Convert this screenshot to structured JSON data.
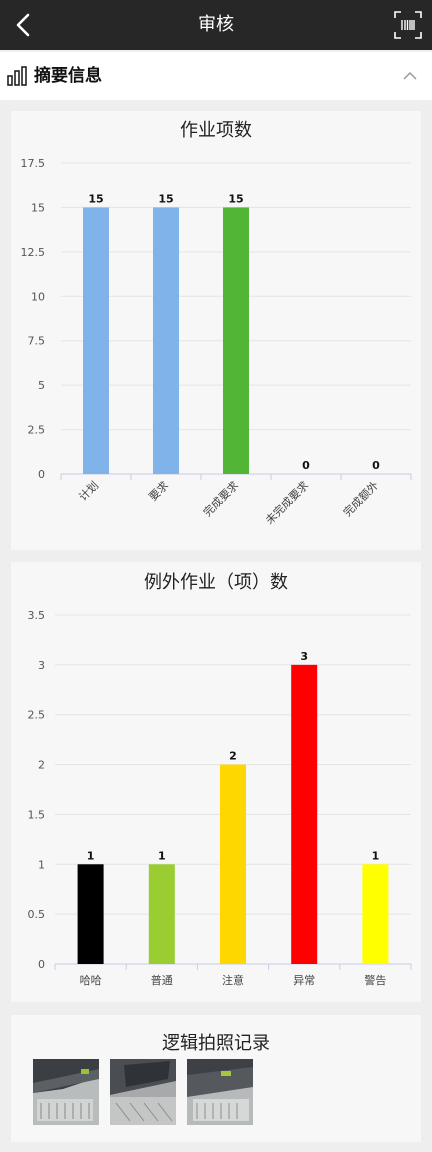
{
  "header": {
    "title": "审核",
    "back_icon": "chevron-left-icon",
    "scan_icon": "scan-barcode-icon"
  },
  "summary": {
    "title": "摘要信息",
    "icon": "bar-chart-icon",
    "collapse_icon": "chevron-up-icon"
  },
  "chart_data": [
    {
      "type": "bar",
      "title": "作业项数",
      "categories": [
        "计划",
        "要求",
        "完成要求",
        "未完成要求",
        "完成额外"
      ],
      "values": [
        15,
        15,
        15,
        0,
        0
      ],
      "colors": [
        "#7fb3ea",
        "#7fb3ea",
        "#52b535",
        "#7fb3ea",
        "#7fb3ea"
      ],
      "ylim": [
        0,
        17.5
      ],
      "yticks": [
        "0",
        "2.5",
        "5",
        "7.5",
        "10",
        "12.5",
        "15",
        "17.5"
      ],
      "grid": true
    },
    {
      "type": "bar",
      "title": "例外作业（项）数",
      "categories": [
        "哈哈",
        "普通",
        "注意",
        "异常",
        "警告"
      ],
      "values": [
        1,
        1,
        2,
        3,
        1
      ],
      "colors": [
        "#000000",
        "#9acd32",
        "#ffd700",
        "#ff0000",
        "#ffff00"
      ],
      "ylim": [
        0,
        3.5
      ],
      "yticks": [
        "0",
        "0.5",
        "1",
        "1.5",
        "2",
        "2.5",
        "3",
        "3.5"
      ],
      "grid": true
    }
  ],
  "photos": {
    "title": "逻辑拍照记录",
    "count": 3
  }
}
